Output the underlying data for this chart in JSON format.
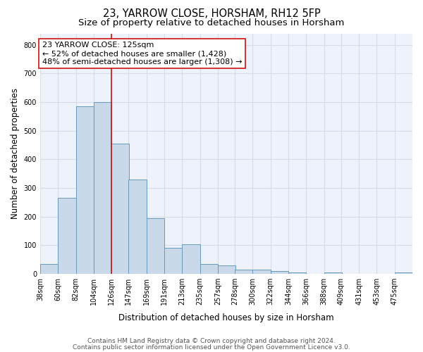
{
  "title": "23, YARROW CLOSE, HORSHAM, RH12 5FP",
  "subtitle": "Size of property relative to detached houses in Horsham",
  "xlabel": "Distribution of detached houses by size in Horsham",
  "ylabel": "Number of detached properties",
  "footer_line1": "Contains HM Land Registry data © Crown copyright and database right 2024.",
  "footer_line2": "Contains public sector information licensed under the Open Government Licence v3.0.",
  "annotation_title": "23 YARROW CLOSE: 125sqm",
  "annotation_line1": "← 52% of detached houses are smaller (1,428)",
  "annotation_line2": "48% of semi-detached houses are larger (1,308) →",
  "bin_edges": [
    38,
    60,
    82,
    104,
    126,
    147,
    169,
    191,
    213,
    235,
    257,
    278,
    300,
    322,
    344,
    366,
    388,
    409,
    431,
    453,
    475
  ],
  "bar_heights": [
    35,
    265,
    585,
    600,
    455,
    330,
    195,
    90,
    103,
    35,
    30,
    15,
    15,
    10,
    5,
    0,
    5,
    0,
    0,
    0,
    5
  ],
  "bar_color": "#c9d9ea",
  "bar_edgecolor": "#6699bb",
  "bar_linewidth": 0.7,
  "reference_line_x": 126,
  "reference_line_color": "#cc1111",
  "ylim": [
    0,
    840
  ],
  "yticks": [
    0,
    100,
    200,
    300,
    400,
    500,
    600,
    700,
    800
  ],
  "background_color": "#eef2fa",
  "grid_color": "#d8dce8",
  "annotation_box_facecolor": "#ffffff",
  "annotation_box_edgecolor": "#cc1111",
  "title_fontsize": 10.5,
  "subtitle_fontsize": 9.5,
  "axis_label_fontsize": 8.5,
  "annotation_fontsize": 8,
  "tick_fontsize": 7,
  "footer_fontsize": 6.5
}
